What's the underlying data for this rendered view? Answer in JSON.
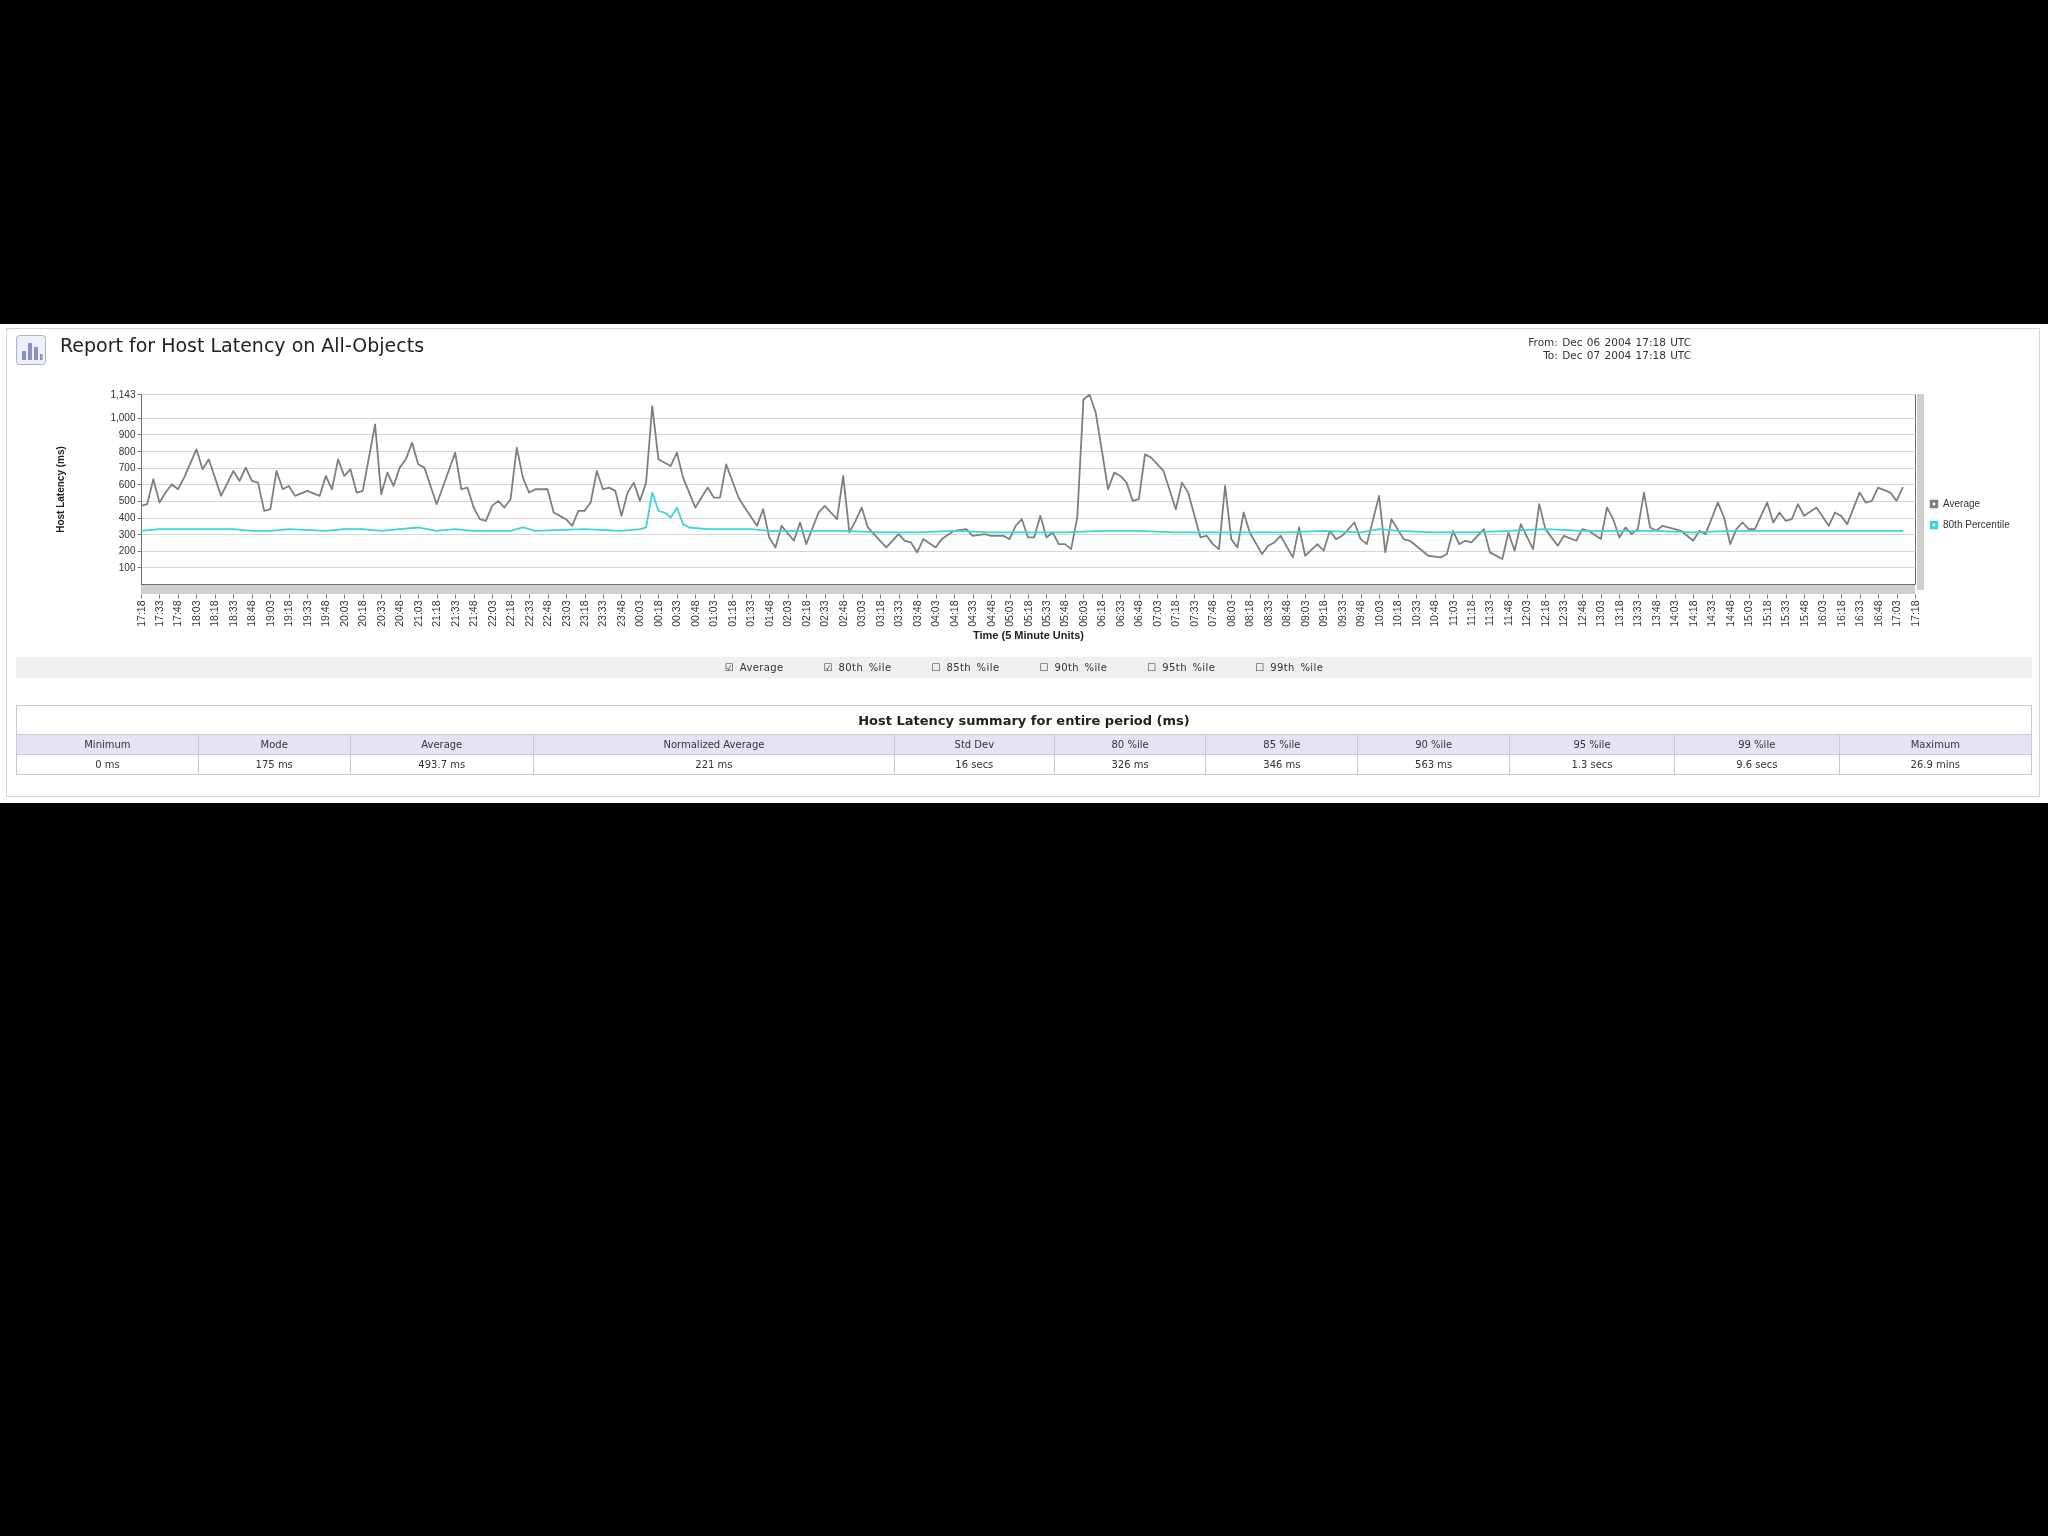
{
  "chart_data": {
    "type": "line",
    "title": "Report for Host Latency on All-Objects",
    "xlabel": "Time (5 Minute Units)",
    "ylabel": "Host Latency (ms)",
    "annotations": [
      "From: Dec 06 2004 17:18 UTC",
      "To: Dec 07 2004 17:18 UTC",
      "☑ Average",
      "☑ 80th %ile",
      "☐ 85th %ile",
      "☐ 90th %ile",
      "☐ 95th %ile",
      "☐ 99th %ile",
      "Host Latency summary for entire period (ms)",
      "Minimum",
      "Mode",
      "Average",
      "Normalized Average",
      "Std Dev",
      "80 %ile",
      "85 %ile",
      "90 %ile",
      "95 %ile",
      "99 %ile",
      "Maximum",
      "0 ms",
      "175 ms",
      "493.7 ms",
      "221 ms",
      "16 secs",
      "326 ms",
      "346 ms",
      "563 ms",
      "1.3 secs",
      "9.6 secs",
      "26.9 mins"
    ],
    "xlim": [
      "2004-12-06T17:18",
      "2004-12-07T17:18"
    ],
    "ylim": [
      0,
      1143
    ],
    "yticks": [
      100,
      200,
      300,
      400,
      500,
      600,
      700,
      800,
      900,
      {
        "value": 1000,
        "label": "1,000"
      },
      {
        "value": 1143,
        "label": "1,143"
      }
    ],
    "xticks": [
      {
        "value": "2004-12-06T17:18",
        "label": "17:18"
      },
      {
        "value": "2004-12-06T17:33",
        "label": "17:33"
      },
      {
        "value": "2004-12-06T17:48",
        "label": "17:48"
      },
      {
        "value": "2004-12-06T18:03",
        "label": "18:03"
      },
      {
        "value": "2004-12-06T18:18",
        "label": "18:18"
      },
      {
        "value": "2004-12-06T18:33",
        "label": "18:33"
      },
      {
        "value": "2004-12-06T18:48",
        "label": "18:48"
      },
      {
        "value": "2004-12-06T19:03",
        "label": "19:03"
      },
      {
        "value": "2004-12-06T19:18",
        "label": "19:18"
      },
      {
        "value": "2004-12-06T19:33",
        "label": "19:33"
      },
      {
        "value": "2004-12-06T19:48",
        "label": "19:48"
      },
      {
        "value": "2004-12-06T20:03",
        "label": "20:03"
      },
      {
        "value": "2004-12-06T20:18",
        "label": "20:18"
      },
      {
        "value": "2004-12-06T20:33",
        "label": "20:33"
      },
      {
        "value": "2004-12-06T20:48",
        "label": "20:48"
      },
      {
        "value": "2004-12-06T21:03",
        "label": "21:03"
      },
      {
        "value": "2004-12-06T21:18",
        "label": "21:18"
      },
      {
        "value": "2004-12-06T21:33",
        "label": "21:33"
      },
      {
        "value": "2004-12-06T21:48",
        "label": "21:48"
      },
      {
        "value": "2004-12-06T22:03",
        "label": "22:03"
      },
      {
        "value": "2004-12-06T22:18",
        "label": "22:18"
      },
      {
        "value": "2004-12-06T22:33",
        "label": "22:33"
      },
      {
        "value": "2004-12-06T22:48",
        "label": "22:48"
      },
      {
        "value": "2004-12-06T23:03",
        "label": "23:03"
      },
      {
        "value": "2004-12-06T23:18",
        "label": "23:18"
      },
      {
        "value": "2004-12-06T23:33",
        "label": "23:33"
      },
      {
        "value": "2004-12-06T23:48",
        "label": "23:48"
      },
      {
        "value": "2004-12-07T00:03",
        "label": "00:03"
      },
      {
        "value": "2004-12-07T00:18",
        "label": "00:18"
      },
      {
        "value": "2004-12-07T00:33",
        "label": "00:33"
      },
      {
        "value": "2004-12-07T00:48",
        "label": "00:48"
      },
      {
        "value": "2004-12-07T01:03",
        "label": "01:03"
      },
      {
        "value": "2004-12-07T01:18",
        "label": "01:18"
      },
      {
        "value": "2004-12-07T01:33",
        "label": "01:33"
      },
      {
        "value": "2004-12-07T01:48",
        "label": "01:48"
      },
      {
        "value": "2004-12-07T02:03",
        "label": "02:03"
      },
      {
        "value": "2004-12-07T02:18",
        "label": "02:18"
      },
      {
        "value": "2004-12-07T02:33",
        "label": "02:33"
      },
      {
        "value": "2004-12-07T02:48",
        "label": "02:48"
      },
      {
        "value": "2004-12-07T03:03",
        "label": "03:03"
      },
      {
        "value": "2004-12-07T03:18",
        "label": "03:18"
      },
      {
        "value": "2004-12-07T03:33",
        "label": "03:33"
      },
      {
        "value": "2004-12-07T03:48",
        "label": "03:48"
      },
      {
        "value": "2004-12-07T04:03",
        "label": "04:03"
      },
      {
        "value": "2004-12-07T04:18",
        "label": "04:18"
      },
      {
        "value": "2004-12-07T04:33",
        "label": "04:33"
      },
      {
        "value": "2004-12-07T04:48",
        "label": "04:48"
      },
      {
        "value": "2004-12-07T05:03",
        "label": "05:03"
      },
      {
        "value": "2004-12-07T05:18",
        "label": "05:18"
      },
      {
        "value": "2004-12-07T05:33",
        "label": "05:33"
      },
      {
        "value": "2004-12-07T05:48",
        "label": "05:48"
      },
      {
        "value": "2004-12-07T06:03",
        "label": "06:03"
      },
      {
        "value": "2004-12-07T06:18",
        "label": "06:18"
      },
      {
        "value": "2004-12-07T06:33",
        "label": "06:33"
      },
      {
        "value": "2004-12-07T06:48",
        "label": "06:48"
      },
      {
        "value": "2004-12-07T07:03",
        "label": "07:03"
      },
      {
        "value": "2004-12-07T07:18",
        "label": "07:18"
      },
      {
        "value": "2004-12-07T07:33",
        "label": "07:33"
      },
      {
        "value": "2004-12-07T07:48",
        "label": "07:48"
      },
      {
        "value": "2004-12-07T08:03",
        "label": "08:03"
      },
      {
        "value": "2004-12-07T08:18",
        "label": "08:18"
      },
      {
        "value": "2004-12-07T08:33",
        "label": "08:33"
      },
      {
        "value": "2004-12-07T08:48",
        "label": "08:48"
      },
      {
        "value": "2004-12-07T09:03",
        "label": "09:03"
      },
      {
        "value": "2004-12-07T09:18",
        "label": "09:18"
      },
      {
        "value": "2004-12-07T09:33",
        "label": "09:33"
      },
      {
        "value": "2004-12-07T09:48",
        "label": "09:48"
      },
      {
        "value": "2004-12-07T10:03",
        "label": "10:03"
      },
      {
        "value": "2004-12-07T10:18",
        "label": "10:18"
      },
      {
        "value": "2004-12-07T10:33",
        "label": "10:33"
      },
      {
        "value": "2004-12-07T10:48",
        "label": "10:48"
      },
      {
        "value": "2004-12-07T11:03",
        "label": "11:03"
      },
      {
        "value": "2004-12-07T11:18",
        "label": "11:18"
      },
      {
        "value": "2004-12-07T11:33",
        "label": "11:33"
      },
      {
        "value": "2004-12-07T11:48",
        "label": "11:48"
      },
      {
        "value": "2004-12-07T12:03",
        "label": "12:03"
      },
      {
        "value": "2004-12-07T12:18",
        "label": "12:18"
      },
      {
        "value": "2004-12-07T12:33",
        "label": "12:33"
      },
      {
        "value": "2004-12-07T12:48",
        "label": "12:48"
      },
      {
        "value": "2004-12-07T13:03",
        "label": "13:03"
      },
      {
        "value": "2004-12-07T13:18",
        "label": "13:18"
      },
      {
        "value": "2004-12-07T13:33",
        "label": "13:33"
      },
      {
        "value": "2004-12-07T13:48",
        "label": "13:48"
      },
      {
        "value": "2004-12-07T14:03",
        "label": "14:03"
      },
      {
        "value": "2004-12-07T14:18",
        "label": "14:18"
      },
      {
        "value": "2004-12-07T14:33",
        "label": "14:33"
      },
      {
        "value": "2004-12-07T14:48",
        "label": "14:48"
      },
      {
        "value": "2004-12-07T15:03",
        "label": "15:03"
      },
      {
        "value": "2004-12-07T15:18",
        "label": "15:18"
      },
      {
        "value": "2004-12-07T15:33",
        "label": "15:33"
      },
      {
        "value": "2004-12-07T15:48",
        "label": "15:48"
      },
      {
        "value": "2004-12-07T16:03",
        "label": "16:03"
      },
      {
        "value": "2004-12-07T16:18",
        "label": "16:18"
      },
      {
        "value": "2004-12-07T16:33",
        "label": "16:33"
      },
      {
        "value": "2004-12-07T16:48",
        "label": "16:48"
      },
      {
        "value": "2004-12-07T17:03",
        "label": "17:03"
      },
      {
        "value": "2004-12-07T17:18",
        "label": "17:18"
      }
    ],
    "grid": "y",
    "legend": "right",
    "series": [
      {
        "name": "Average",
        "color": "#7f7f7f",
        "x": [
          "2004-12-06T17:18",
          "2004-12-06T17:23",
          "2004-12-06T17:28",
          "2004-12-06T17:33",
          "2004-12-06T17:38",
          "2004-12-06T17:43",
          "2004-12-06T17:48",
          "2004-12-06T17:53",
          "2004-12-06T18:03",
          "2004-12-06T18:08",
          "2004-12-06T18:13",
          "2004-12-06T18:23",
          "2004-12-06T18:33",
          "2004-12-06T18:38",
          "2004-12-06T18:43",
          "2004-12-06T18:48",
          "2004-12-06T18:53",
          "2004-12-06T18:58",
          "2004-12-06T19:03",
          "2004-12-06T19:08",
          "2004-12-06T19:13",
          "2004-12-06T19:18",
          "2004-12-06T19:23",
          "2004-12-06T19:33",
          "2004-12-06T19:43",
          "2004-12-06T19:48",
          "2004-12-06T19:53",
          "2004-12-06T19:58",
          "2004-12-06T20:03",
          "2004-12-06T20:08",
          "2004-12-06T20:13",
          "2004-12-06T20:18",
          "2004-12-06T20:28",
          "2004-12-06T20:33",
          "2004-12-06T20:38",
          "2004-12-06T20:43",
          "2004-12-06T20:48",
          "2004-12-06T20:53",
          "2004-12-06T20:58",
          "2004-12-06T21:03",
          "2004-12-06T21:08",
          "2004-12-06T21:18",
          "2004-12-06T21:33",
          "2004-12-06T21:38",
          "2004-12-06T21:43",
          "2004-12-06T21:48",
          "2004-12-06T21:53",
          "2004-12-06T21:58",
          "2004-12-06T22:03",
          "2004-12-06T22:08",
          "2004-12-06T22:13",
          "2004-12-06T22:18",
          "2004-12-06T22:23",
          "2004-12-06T22:28",
          "2004-12-06T22:33",
          "2004-12-06T22:38",
          "2004-12-06T22:48",
          "2004-12-06T22:53",
          "2004-12-06T22:58",
          "2004-12-06T23:03",
          "2004-12-06T23:08",
          "2004-12-06T23:13",
          "2004-12-06T23:18",
          "2004-12-06T23:23",
          "2004-12-06T23:28",
          "2004-12-06T23:33",
          "2004-12-06T23:38",
          "2004-12-06T23:43",
          "2004-12-06T23:48",
          "2004-12-06T23:53",
          "2004-12-06T23:58",
          "2004-12-07T00:03",
          "2004-12-07T00:08",
          "2004-12-07T00:13",
          "2004-12-07T00:18",
          "2004-12-07T00:28",
          "2004-12-07T00:33",
          "2004-12-07T00:38",
          "2004-12-07T00:48",
          "2004-12-07T00:58",
          "2004-12-07T01:03",
          "2004-12-07T01:08",
          "2004-12-07T01:13",
          "2004-12-07T01:23",
          "2004-12-07T01:28",
          "2004-12-07T01:38",
          "2004-12-07T01:43",
          "2004-12-07T01:48",
          "2004-12-07T01:53",
          "2004-12-07T01:58",
          "2004-12-07T02:08",
          "2004-12-07T02:13",
          "2004-12-07T02:18",
          "2004-12-07T02:28",
          "2004-12-07T02:33",
          "2004-12-07T02:43",
          "2004-12-07T02:48",
          "2004-12-07T02:53",
          "2004-12-07T02:58",
          "2004-12-07T03:03",
          "2004-12-07T03:08",
          "2004-12-07T03:18",
          "2004-12-07T03:23",
          "2004-12-07T03:33",
          "2004-12-07T03:38",
          "2004-12-07T03:43",
          "2004-12-07T03:48",
          "2004-12-07T03:53",
          "2004-12-07T04:03",
          "2004-12-07T04:08",
          "2004-12-07T04:18",
          "2004-12-07T04:28",
          "2004-12-07T04:33",
          "2004-12-07T04:43",
          "2004-12-07T04:48",
          "2004-12-07T04:58",
          "2004-12-07T05:03",
          "2004-12-07T05:08",
          "2004-12-07T05:13",
          "2004-12-07T05:18",
          "2004-12-07T05:23",
          "2004-12-07T05:28",
          "2004-12-07T05:33",
          "2004-12-07T05:38",
          "2004-12-07T05:43",
          "2004-12-07T05:48",
          "2004-12-07T05:53",
          "2004-12-07T05:58",
          "2004-12-07T06:03",
          "2004-12-07T06:08",
          "2004-12-07T06:13",
          "2004-12-07T06:18",
          "2004-12-07T06:23",
          "2004-12-07T06:28",
          "2004-12-07T06:33",
          "2004-12-07T06:38",
          "2004-12-07T06:43",
          "2004-12-07T06:48",
          "2004-12-07T06:53",
          "2004-12-07T06:58",
          "2004-12-07T07:08",
          "2004-12-07T07:18",
          "2004-12-07T07:23",
          "2004-12-07T07:28",
          "2004-12-07T07:38",
          "2004-12-07T07:43",
          "2004-12-07T07:48",
          "2004-12-07T07:53",
          "2004-12-07T07:58",
          "2004-12-07T08:03",
          "2004-12-07T08:08",
          "2004-12-07T08:13",
          "2004-12-07T08:18",
          "2004-12-07T08:28",
          "2004-12-07T08:33",
          "2004-12-07T08:38",
          "2004-12-07T08:43",
          "2004-12-07T08:53",
          "2004-12-07T08:58",
          "2004-12-07T09:03",
          "2004-12-07T09:13",
          "2004-12-07T09:18",
          "2004-12-07T09:23",
          "2004-12-07T09:28",
          "2004-12-07T09:33",
          "2004-12-07T09:43",
          "2004-12-07T09:48",
          "2004-12-07T09:53",
          "2004-12-07T10:03",
          "2004-12-07T10:08",
          "2004-12-07T10:13",
          "2004-12-07T10:23",
          "2004-12-07T10:28",
          "2004-12-07T10:38",
          "2004-12-07T10:43",
          "2004-12-07T10:53",
          "2004-12-07T10:58",
          "2004-12-07T11:03",
          "2004-12-07T11:08",
          "2004-12-07T11:13",
          "2004-12-07T11:18",
          "2004-12-07T11:28",
          "2004-12-07T11:33",
          "2004-12-07T11:43",
          "2004-12-07T11:48",
          "2004-12-07T11:53",
          "2004-12-07T11:58",
          "2004-12-07T12:08",
          "2004-12-07T12:13",
          "2004-12-07T12:18",
          "2004-12-07T12:28",
          "2004-12-07T12:33",
          "2004-12-07T12:43",
          "2004-12-07T12:48",
          "2004-12-07T12:53",
          "2004-12-07T13:03",
          "2004-12-07T13:08",
          "2004-12-07T13:13",
          "2004-12-07T13:18",
          "2004-12-07T13:23",
          "2004-12-07T13:28",
          "2004-12-07T13:33",
          "2004-12-07T13:38",
          "2004-12-07T13:43",
          "2004-12-07T13:48",
          "2004-12-07T13:53",
          "2004-12-07T14:03",
          "2004-12-07T14:08",
          "2004-12-07T14:18",
          "2004-12-07T14:23",
          "2004-12-07T14:28",
          "2004-12-07T14:38",
          "2004-12-07T14:43",
          "2004-12-07T14:48",
          "2004-12-07T14:53",
          "2004-12-07T14:58",
          "2004-12-07T15:03",
          "2004-12-07T15:08",
          "2004-12-07T15:18",
          "2004-12-07T15:23",
          "2004-12-07T15:28",
          "2004-12-07T15:33",
          "2004-12-07T15:38",
          "2004-12-07T15:43",
          "2004-12-07T15:48",
          "2004-12-07T15:58",
          "2004-12-07T16:08",
          "2004-12-07T16:13",
          "2004-12-07T16:18",
          "2004-12-07T16:23",
          "2004-12-07T16:33",
          "2004-12-07T16:38",
          "2004-12-07T16:43",
          "2004-12-07T16:48",
          "2004-12-07T16:58",
          "2004-12-07T17:03",
          "2004-12-07T17:08"
        ],
        "values": [
          470,
          480,
          630,
          490,
          550,
          600,
          570,
          640,
          810,
          690,
          750,
          530,
          680,
          620,
          700,
          620,
          610,
          440,
          450,
          680,
          570,
          590,
          530,
          560,
          530,
          650,
          570,
          750,
          650,
          690,
          550,
          560,
          960,
          540,
          670,
          590,
          700,
          750,
          850,
          720,
          700,
          480,
          790,
          570,
          580,
          460,
          390,
          380,
          470,
          500,
          460,
          510,
          820,
          640,
          550,
          570,
          570,
          430,
          410,
          390,
          350,
          440,
          440,
          490,
          680,
          570,
          580,
          560,
          410,
          550,
          610,
          500,
          610,
          1070,
          750,
          710,
          790,
          640,
          460,
          580,
          520,
          520,
          720,
          520,
          460,
          350,
          450,
          280,
          220,
          350,
          260,
          370,
          240,
          430,
          470,
          390,
          650,
          310,
          380,
          460,
          340,
          260,
          220,
          300,
          260,
          250,
          190,
          270,
          220,
          270,
          320,
          330,
          290,
          300,
          290,
          290,
          270,
          350,
          390,
          280,
          280,
          410,
          280,
          310,
          240,
          240,
          210,
          400,
          1110,
          1140,
          1030,
          800,
          570,
          670,
          650,
          610,
          500,
          510,
          780,
          760,
          680,
          450,
          610,
          550,
          280,
          290,
          240,
          210,
          590,
          270,
          220,
          430,
          310,
          180,
          230,
          250,
          290,
          160,
          340,
          170,
          240,
          200,
          320,
          270,
          290,
          370,
          270,
          240,
          530,
          190,
          390,
          270,
          260,
          200,
          170,
          160,
          180,
          320,
          240,
          260,
          250,
          330,
          190,
          150,
          310,
          200,
          360,
          210,
          480,
          330,
          230,
          290,
          260,
          330,
          320,
          270,
          460,
          390,
          280,
          340,
          300,
          330,
          550,
          340,
          320,
          350,
          330,
          320,
          260,
          320,
          300,
          490,
          400,
          240,
          330,
          370,
          330,
          330,
          490,
          370,
          430,
          380,
          390,
          480,
          410,
          460,
          350,
          430,
          410,
          360,
          550,
          490,
          500,
          580,
          550,
          500,
          580
        ]
      },
      {
        "name": "80th Percentile",
        "color": "#3fd3da",
        "x": [
          "2004-12-06T17:18",
          "2004-12-06T17:33",
          "2004-12-06T17:48",
          "2004-12-06T18:03",
          "2004-12-06T18:33",
          "2004-12-06T18:48",
          "2004-12-06T19:03",
          "2004-12-06T19:18",
          "2004-12-06T19:48",
          "2004-12-06T20:03",
          "2004-12-06T20:18",
          "2004-12-06T20:33",
          "2004-12-06T20:48",
          "2004-12-06T21:03",
          "2004-12-06T21:18",
          "2004-12-06T21:33",
          "2004-12-06T21:48",
          "2004-12-06T22:18",
          "2004-12-06T22:28",
          "2004-12-06T22:38",
          "2004-12-06T23:18",
          "2004-12-06T23:48",
          "2004-12-07T00:03",
          "2004-12-07T00:08",
          "2004-12-07T00:13",
          "2004-12-07T00:18",
          "2004-12-07T00:23",
          "2004-12-07T00:28",
          "2004-12-07T00:33",
          "2004-12-07T00:38",
          "2004-12-07T00:43",
          "2004-12-07T00:58",
          "2004-12-07T01:13",
          "2004-12-07T01:33",
          "2004-12-07T01:48",
          "2004-12-07T02:18",
          "2004-12-07T02:48",
          "2004-12-07T03:18",
          "2004-12-07T03:48",
          "2004-12-07T04:18",
          "2004-12-07T04:48",
          "2004-12-07T05:18",
          "2004-12-07T05:48",
          "2004-12-07T06:18",
          "2004-12-07T06:48",
          "2004-12-07T07:18",
          "2004-12-07T07:48",
          "2004-12-07T08:18",
          "2004-12-07T08:48",
          "2004-12-07T09:18",
          "2004-12-07T09:48",
          "2004-12-07T10:03",
          "2004-12-07T10:18",
          "2004-12-07T10:48",
          "2004-12-07T11:18",
          "2004-12-07T11:48",
          "2004-12-07T12:18",
          "2004-12-07T12:48",
          "2004-12-07T13:18",
          "2004-12-07T13:48",
          "2004-12-07T14:18",
          "2004-12-07T14:48",
          "2004-12-07T15:18",
          "2004-12-07T15:48",
          "2004-12-07T16:18",
          "2004-12-07T16:48",
          "2004-12-07T17:08"
        ],
        "values": [
          320,
          330,
          330,
          330,
          330,
          320,
          320,
          330,
          320,
          330,
          330,
          320,
          330,
          340,
          320,
          330,
          320,
          320,
          340,
          320,
          330,
          320,
          330,
          340,
          550,
          440,
          430,
          400,
          460,
          360,
          340,
          330,
          330,
          330,
          320,
          320,
          320,
          310,
          310,
          320,
          310,
          310,
          310,
          320,
          320,
          310,
          310,
          310,
          310,
          320,
          310,
          330,
          320,
          310,
          310,
          320,
          330,
          320,
          320,
          320,
          310,
          320,
          320,
          320,
          320,
          320,
          320
        ]
      }
    ]
  }
}
